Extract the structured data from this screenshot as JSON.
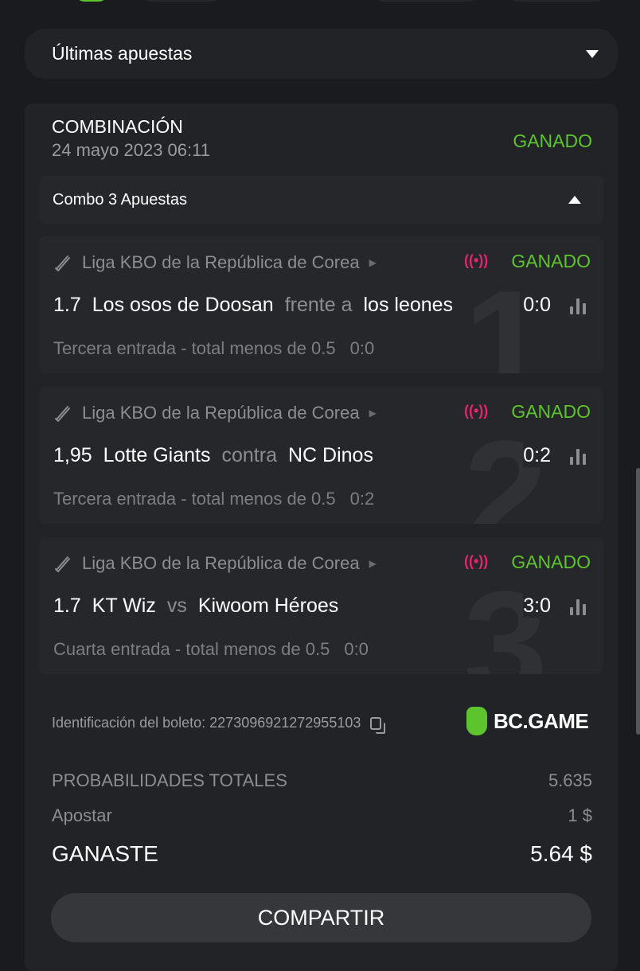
{
  "dropdown": {
    "label": "Últimas apuestas"
  },
  "bet": {
    "type": "COMBINACIÓN",
    "date": "24 mayo 2023 06:11",
    "status": "GANADO",
    "combo_label": "Combo 3 Apuestas",
    "legs": [
      {
        "number": "1",
        "league": "Liga KBO de la República de Corea",
        "status": "GANADO",
        "odds": "1.7",
        "home": "Los osos de Doosan",
        "vs": "frente a",
        "away": "los leones",
        "score": "0:0",
        "market": "Tercera entrada - total menos de 0.5",
        "market_score": "0:0"
      },
      {
        "number": "2",
        "league": "Liga KBO de la República de Corea",
        "status": "GANADO",
        "odds": "1,95",
        "home": "Lotte Giants",
        "vs": "contra",
        "away": "NC Dinos",
        "score": "0:2",
        "market": "Tercera entrada - total menos de 0.5",
        "market_score": "0:2"
      },
      {
        "number": "3",
        "league": "Liga KBO de la República de Corea",
        "status": "GANADO",
        "odds": "1.7",
        "home": "KT Wiz",
        "vs": "vs",
        "away": "Kiwoom Héroes",
        "score": "3:0",
        "market": "Cuarta entrada - total menos de 0.5",
        "market_score": "0:0"
      }
    ],
    "ticket_label": "Identificación del boleto:",
    "ticket_id": "2273096921272955103",
    "brand": "BC.GAME",
    "total_odds_label": "PROBABILIDADES TOTALES",
    "total_odds": "5.635",
    "stake_label": "Apostar",
    "stake": "1 $",
    "won_label": "GANASTE",
    "won": "5.64 $",
    "share_label": "COMPARTIR"
  },
  "colors": {
    "win": "#5ec42e",
    "live": "#e3266e",
    "bg": "#1a1b1e",
    "card": "#222327"
  }
}
